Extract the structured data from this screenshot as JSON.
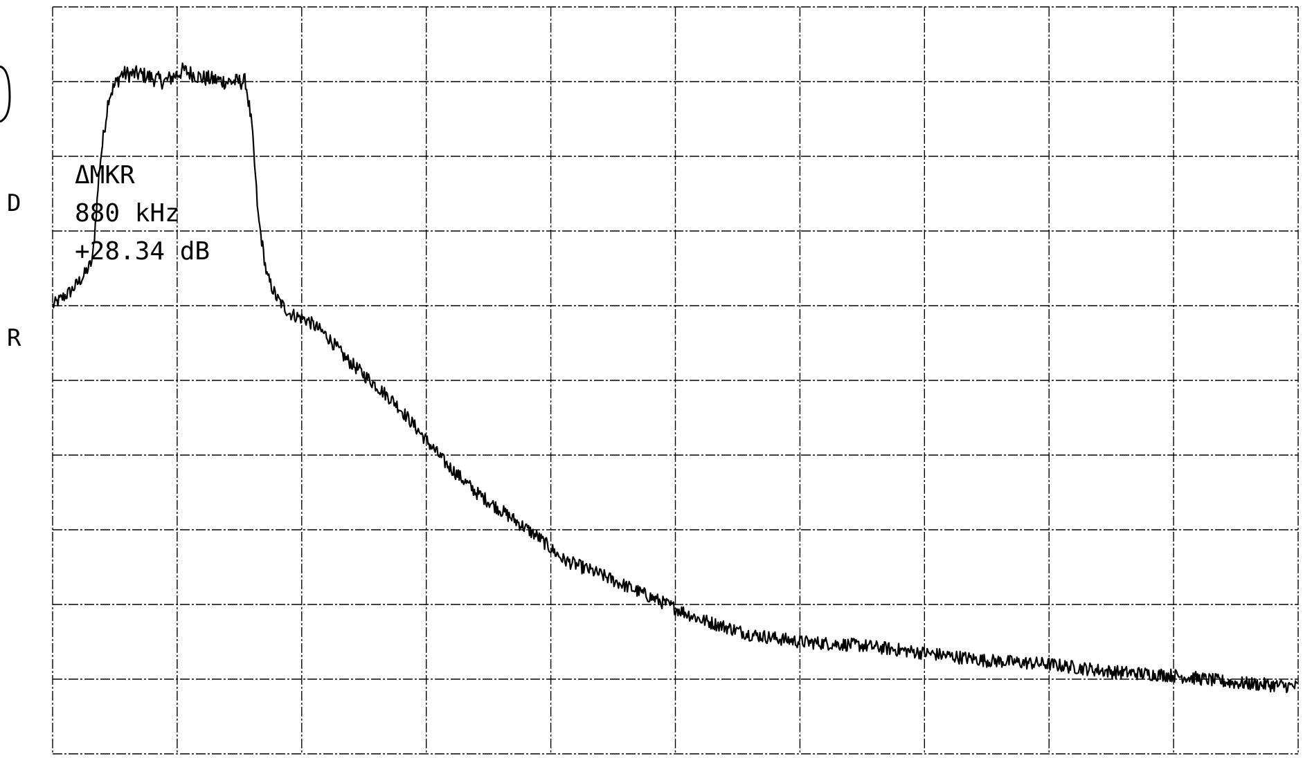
{
  "chart_data": {
    "type": "line",
    "title": "",
    "xlabel": "",
    "ylabel": "",
    "grid": true,
    "legend": "none",
    "xlim": [
      0,
      10
    ],
    "ylim": [
      0,
      10
    ],
    "x_divisions": 10,
    "y_divisions": 10,
    "left_labels": [
      "D",
      "R"
    ],
    "marker_readout": {
      "label": "ΔMKR",
      "frequency": "880 kHz",
      "level": "+28.34 dB"
    },
    "series": [
      {
        "name": "",
        "color": "#000000",
        "points": [
          [
            0.0,
            6.0
          ],
          [
            0.15,
            6.2
          ],
          [
            0.25,
            6.4
          ],
          [
            0.32,
            6.6
          ],
          [
            0.38,
            7.9
          ],
          [
            0.45,
            8.8
          ],
          [
            0.55,
            9.1
          ],
          [
            0.7,
            9.1
          ],
          [
            0.9,
            9.0
          ],
          [
            1.05,
            9.15
          ],
          [
            1.2,
            9.05
          ],
          [
            1.4,
            9.0
          ],
          [
            1.55,
            9.0
          ],
          [
            1.6,
            8.4
          ],
          [
            1.65,
            7.2
          ],
          [
            1.72,
            6.4
          ],
          [
            1.8,
            6.1
          ],
          [
            1.9,
            5.9
          ],
          [
            2.05,
            5.8
          ],
          [
            2.2,
            5.6
          ],
          [
            2.35,
            5.3
          ],
          [
            2.55,
            5.0
          ],
          [
            2.75,
            4.7
          ],
          [
            2.95,
            4.3
          ],
          [
            3.15,
            3.9
          ],
          [
            3.4,
            3.5
          ],
          [
            3.65,
            3.2
          ],
          [
            3.9,
            2.9
          ],
          [
            4.1,
            2.6
          ],
          [
            4.4,
            2.4
          ],
          [
            4.8,
            2.1
          ],
          [
            5.2,
            1.8
          ],
          [
            5.6,
            1.6
          ],
          [
            6.0,
            1.5
          ],
          [
            6.5,
            1.45
          ],
          [
            7.0,
            1.35
          ],
          [
            7.5,
            1.25
          ],
          [
            8.0,
            1.2
          ],
          [
            8.5,
            1.1
          ],
          [
            9.0,
            1.05
          ],
          [
            9.5,
            0.95
          ],
          [
            10.0,
            0.9
          ]
        ]
      }
    ]
  }
}
